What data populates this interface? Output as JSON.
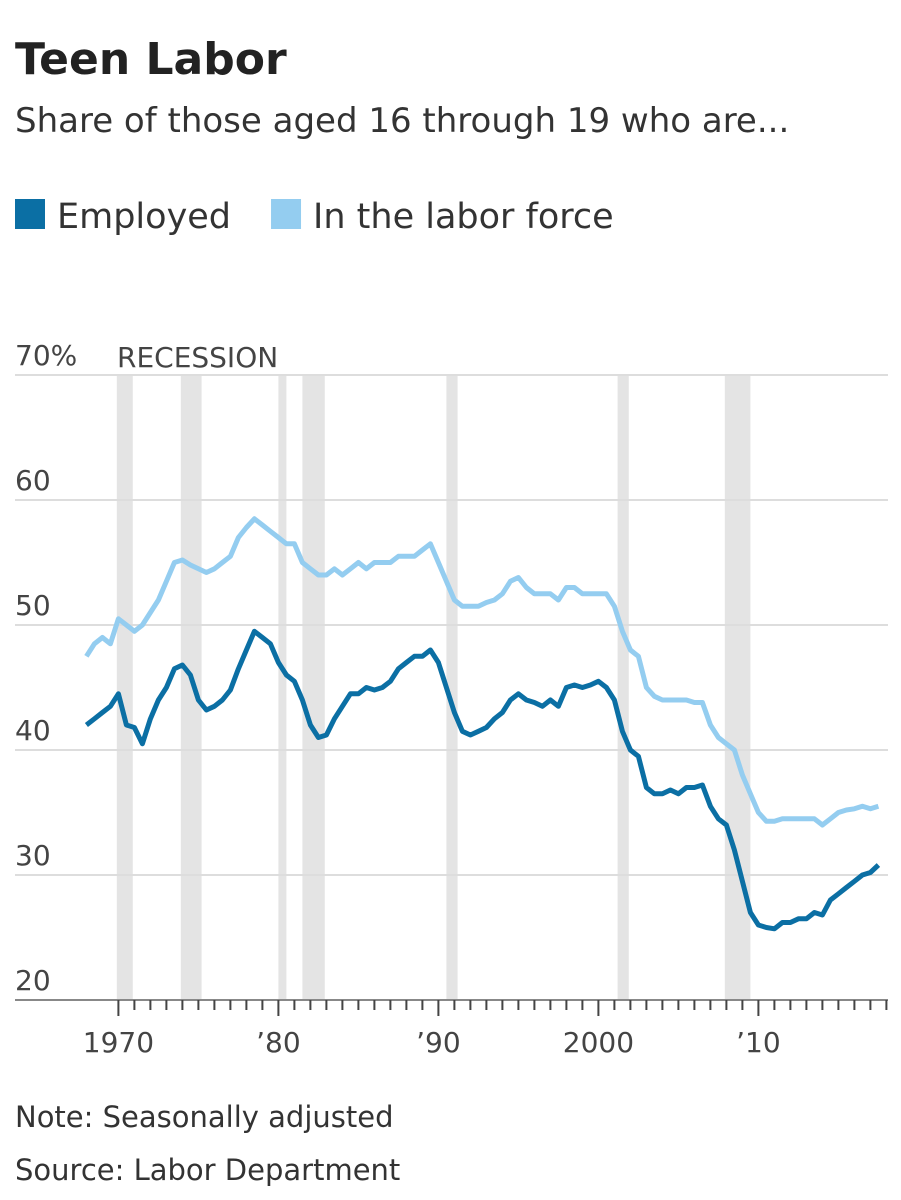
{
  "chart_data": {
    "type": "line",
    "title": "Teen Labor",
    "subtitle": "Share of those aged 16 through 19 who are...",
    "note": "Note: Seasonally adjusted",
    "source": "Source: Labor Department",
    "recession_label": "RECESSION",
    "recession_color": "#e4e4e4",
    "recessions": [
      [
        1969.9,
        1970.9
      ],
      [
        1973.9,
        1975.2
      ],
      [
        1980.0,
        1980.5
      ],
      [
        1981.5,
        1982.9
      ],
      [
        1990.5,
        1991.2
      ],
      [
        2001.2,
        2001.9
      ],
      [
        2007.9,
        2009.5
      ]
    ],
    "grid": true,
    "xlim": [
      1967.6,
      2018.1
    ],
    "ylim": [
      20,
      70
    ],
    "xticks": [
      {
        "value": 1970,
        "label": "1970"
      },
      {
        "value": 1980,
        "label": "’80"
      },
      {
        "value": 1990,
        "label": "’90"
      },
      {
        "value": 2000,
        "label": "2000"
      },
      {
        "value": 2010,
        "label": "’10"
      }
    ],
    "xminorticks": [
      1971,
      1972,
      1973,
      1974,
      1975,
      1976,
      1977,
      1978,
      1979,
      1981,
      1982,
      1983,
      1984,
      1985,
      1986,
      1987,
      1988,
      1989,
      1991,
      1992,
      1993,
      1994,
      1995,
      1996,
      1997,
      1998,
      1999,
      2001,
      2002,
      2003,
      2004,
      2005,
      2006,
      2007,
      2008,
      2009,
      2011,
      2012,
      2013,
      2014,
      2015,
      2016,
      2017,
      2018
    ],
    "yticks": [
      20,
      30,
      40,
      50,
      60,
      {
        "value": 70,
        "label": "70%"
      }
    ],
    "x": [
      1968,
      1968.5,
      1969,
      1969.5,
      1970,
      1970.5,
      1971,
      1971.5,
      1972,
      1972.5,
      1973,
      1973.5,
      1974,
      1974.5,
      1975,
      1975.5,
      1976,
      1976.5,
      1977,
      1977.5,
      1978,
      1978.5,
      1979,
      1979.5,
      1980,
      1980.5,
      1981,
      1981.5,
      1982,
      1982.5,
      1983,
      1983.5,
      1984,
      1984.5,
      1985,
      1985.5,
      1986,
      1986.5,
      1987,
      1987.5,
      1988,
      1988.5,
      1989,
      1989.5,
      1990,
      1990.5,
      1991,
      1991.5,
      1992,
      1992.5,
      1993,
      1993.5,
      1994,
      1994.5,
      1995,
      1995.5,
      1996,
      1996.5,
      1997,
      1997.5,
      1998,
      1998.5,
      1999,
      1999.5,
      2000,
      2000.5,
      2001,
      2001.5,
      2002,
      2002.5,
      2003,
      2003.5,
      2004,
      2004.5,
      2005,
      2005.5,
      2006,
      2006.5,
      2007,
      2007.5,
      2008,
      2008.5,
      2009,
      2009.5,
      2010,
      2010.5,
      2011,
      2011.5,
      2012,
      2012.5,
      2013,
      2013.5,
      2014,
      2014.5,
      2015,
      2015.5,
      2016,
      2016.5,
      2017,
      2017.5
    ],
    "series": [
      {
        "name": "Employed",
        "color": "#0b6fa4",
        "values": [
          42,
          42.5,
          43,
          43.5,
          44.5,
          42,
          41.8,
          40.5,
          42.5,
          44,
          45,
          46.5,
          46.8,
          46,
          44,
          43.2,
          43.5,
          44,
          44.8,
          46.5,
          48,
          49.5,
          49,
          48.5,
          47,
          46,
          45.5,
          44,
          42,
          41,
          41.2,
          42.5,
          43.5,
          44.5,
          44.5,
          45,
          44.8,
          45,
          45.5,
          46.5,
          47,
          47.5,
          47.5,
          48,
          47,
          45,
          43,
          41.5,
          41.2,
          41.5,
          41.8,
          42.5,
          43,
          44,
          44.5,
          44,
          43.8,
          43.5,
          44,
          43.5,
          45,
          45.2,
          45,
          45.2,
          45.5,
          45,
          44,
          41.5,
          40,
          39.5,
          37,
          36.5,
          36.5,
          36.8,
          36.5,
          37,
          37,
          37.2,
          35.5,
          34.5,
          34,
          32,
          29.5,
          27,
          26,
          25.8,
          25.7,
          26.2,
          26.2,
          26.5,
          26.5,
          27,
          26.8,
          28,
          28.5,
          29,
          29.5,
          30,
          30.2,
          30.8
        ]
      },
      {
        "name": "In the labor force",
        "color": "#94cdf0",
        "values": [
          47.5,
          48.5,
          49,
          48.5,
          50.5,
          50,
          49.5,
          50,
          51,
          52,
          53.5,
          55,
          55.2,
          54.8,
          54.5,
          54.2,
          54.5,
          55,
          55.5,
          57,
          57.8,
          58.5,
          58,
          57.5,
          57,
          56.5,
          56.5,
          55,
          54.5,
          54,
          54,
          54.5,
          54,
          54.5,
          55,
          54.5,
          55,
          55,
          55,
          55.5,
          55.5,
          55.5,
          56,
          56.5,
          55,
          53.5,
          52,
          51.5,
          51.5,
          51.5,
          51.8,
          52,
          52.5,
          53.5,
          53.8,
          53,
          52.5,
          52.5,
          52.5,
          52,
          53,
          53,
          52.5,
          52.5,
          52.5,
          52.5,
          51.5,
          49.5,
          48,
          47.5,
          45,
          44.3,
          44,
          44,
          44,
          44,
          43.8,
          43.8,
          42,
          41,
          40.5,
          40,
          38,
          36.5,
          35,
          34.3,
          34.3,
          34.5,
          34.5,
          34.5,
          34.5,
          34.5,
          34,
          34.5,
          35,
          35.2,
          35.3,
          35.5,
          35.3,
          35.5
        ]
      }
    ]
  }
}
